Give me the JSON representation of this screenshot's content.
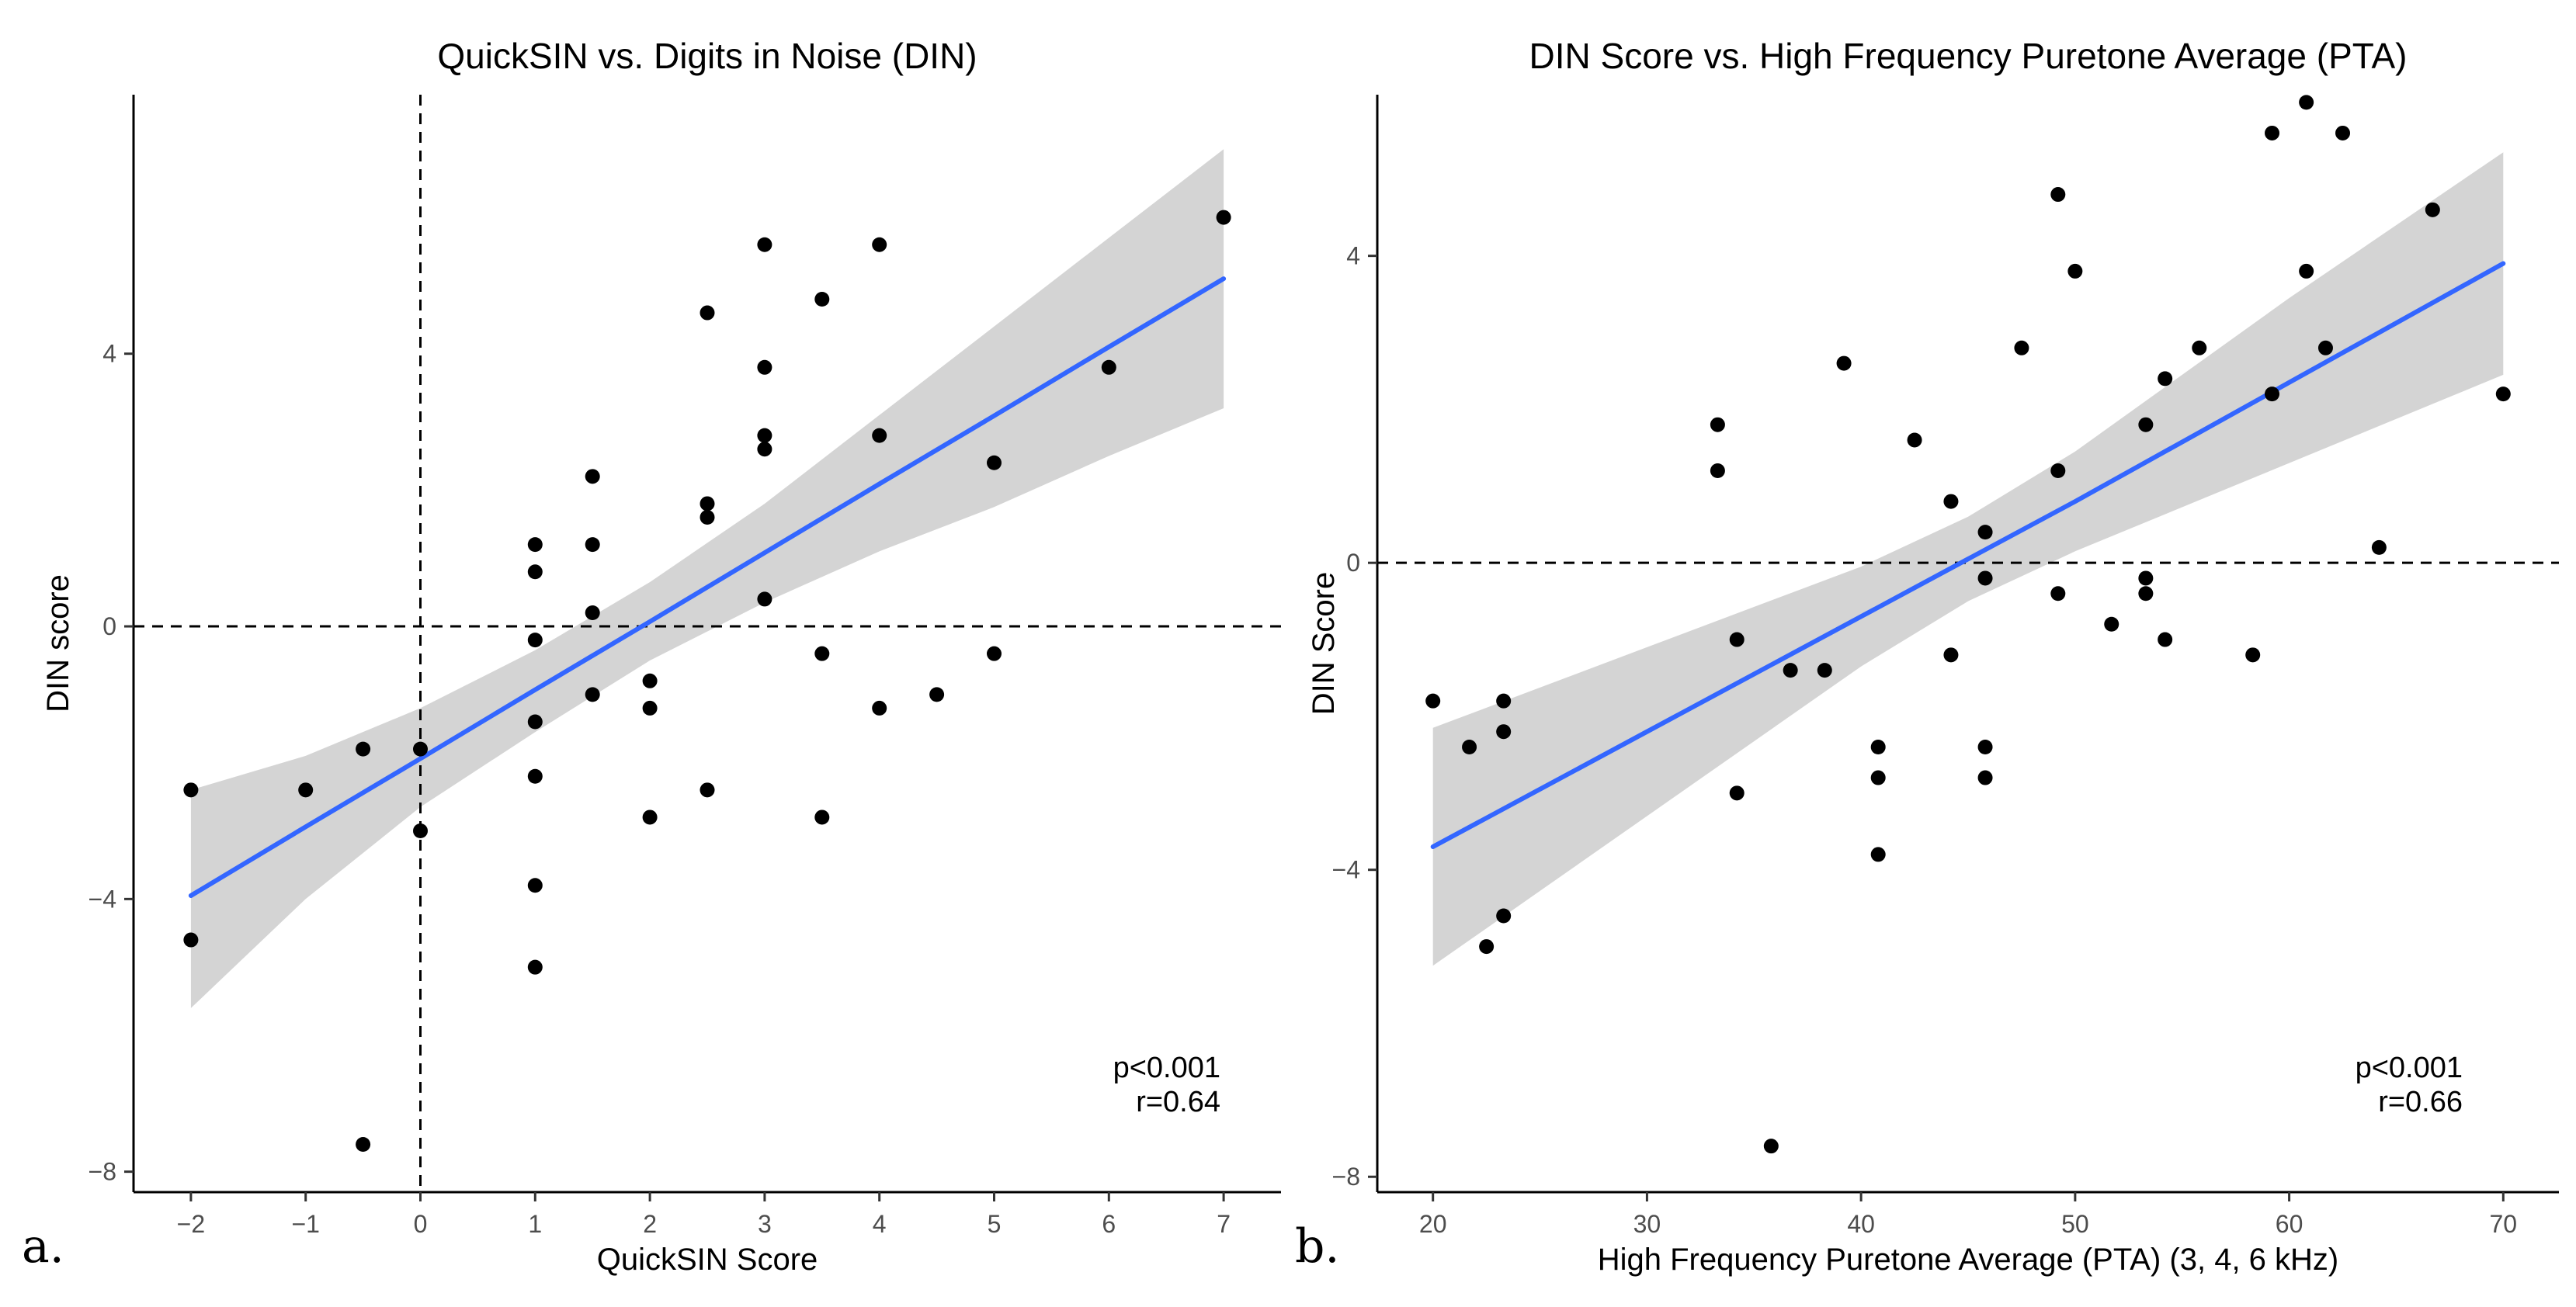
{
  "chart_data": [
    {
      "type": "scatter",
      "panel_label": "a.",
      "title": "QuickSIN vs. Digits in Noise (DIN)",
      "xlabel": "QuickSIN Score",
      "ylabel": "DIN score",
      "xlim": [
        -2.5,
        7.5
      ],
      "ylim": [
        -8.3,
        7.8
      ],
      "xticks": [
        -2,
        -1,
        0,
        1,
        2,
        3,
        4,
        5,
        6,
        7
      ],
      "yticks": [
        -8,
        -4,
        0,
        4
      ],
      "xtick_labels": [
        "−2",
        "−1",
        "0",
        "1",
        "2",
        "3",
        "4",
        "5",
        "6",
        "7"
      ],
      "ytick_labels": [
        "−8",
        "−4",
        "0",
        "4"
      ],
      "grid": false,
      "ref_lines": {
        "h": 0,
        "v": 0
      },
      "annotation": [
        "p<0.001",
        "r=0.64"
      ],
      "colors": {
        "points": "#000000",
        "fit": "#3366ff",
        "band": "#cccccc"
      },
      "points": [
        [
          -2,
          -2.4
        ],
        [
          -2,
          -4.6
        ],
        [
          -1,
          -2.4
        ],
        [
          -0.5,
          -1.8
        ],
        [
          -0.5,
          -7.6
        ],
        [
          0,
          -1.8
        ],
        [
          0,
          -3.0
        ],
        [
          1,
          1.2
        ],
        [
          1,
          0.8
        ],
        [
          1,
          -0.2
        ],
        [
          1,
          -1.4
        ],
        [
          1,
          -2.2
        ],
        [
          1,
          -3.8
        ],
        [
          1,
          -5.0
        ],
        [
          1.5,
          2.2
        ],
        [
          1.5,
          1.2
        ],
        [
          1.5,
          0.2
        ],
        [
          1.5,
          -1.0
        ],
        [
          2,
          -0.8
        ],
        [
          2,
          -1.2
        ],
        [
          2,
          -2.8
        ],
        [
          2.5,
          4.6
        ],
        [
          2.5,
          1.8
        ],
        [
          2.5,
          1.6
        ],
        [
          2.5,
          -2.4
        ],
        [
          3,
          5.6
        ],
        [
          3,
          3.8
        ],
        [
          3,
          2.8
        ],
        [
          3,
          2.6
        ],
        [
          3,
          0.4
        ],
        [
          3.5,
          4.8
        ],
        [
          3.5,
          -0.4
        ],
        [
          3.5,
          -2.8
        ],
        [
          4,
          5.6
        ],
        [
          4,
          2.8
        ],
        [
          4,
          -1.2
        ],
        [
          4.5,
          -1.0
        ],
        [
          5,
          2.4
        ],
        [
          5,
          -0.4
        ],
        [
          6,
          3.8
        ],
        [
          7,
          6.0
        ]
      ],
      "fit": {
        "x": [
          -2,
          -1,
          0,
          1,
          2,
          3,
          4,
          5,
          6,
          7
        ],
        "y": [
          -3.95,
          -2.94,
          -1.94,
          -0.93,
          0.07,
          1.08,
          2.09,
          3.09,
          4.1,
          5.1
        ],
        "lower": [
          -5.6,
          -4.0,
          -2.65,
          -1.55,
          -0.5,
          0.35,
          1.1,
          1.75,
          2.5,
          3.2
        ],
        "upper": [
          -2.4,
          -1.9,
          -1.2,
          -0.35,
          0.65,
          1.8,
          3.1,
          4.4,
          5.7,
          7.0
        ]
      }
    },
    {
      "type": "scatter",
      "panel_label": "b.",
      "title": "DIN Score vs. High Frequency Puretone Average (PTA)",
      "xlabel": "High Frequency Puretone Average (PTA) (3, 4, 6 kHz)",
      "ylabel": "DIN Score",
      "xlim": [
        17.4,
        72.6
      ],
      "ylim": [
        -8.2,
        6.1
      ],
      "xticks": [
        20,
        30,
        40,
        50,
        60,
        70
      ],
      "yticks": [
        -8,
        -4,
        0,
        4
      ],
      "xtick_labels": [
        "20",
        "30",
        "40",
        "50",
        "60",
        "70"
      ],
      "ytick_labels": [
        "−8",
        "−4",
        "0",
        "4"
      ],
      "grid": false,
      "ref_lines": {
        "h": 0
      },
      "annotation": [
        "p<0.001",
        "r=0.66"
      ],
      "colors": {
        "points": "#000000",
        "fit": "#3366ff",
        "band": "#cccccc"
      },
      "points": [
        [
          20,
          -1.8
        ],
        [
          21.7,
          -2.4
        ],
        [
          22.5,
          -5.0
        ],
        [
          23.3,
          -1.8
        ],
        [
          23.3,
          -2.2
        ],
        [
          23.3,
          -4.6
        ],
        [
          33.3,
          1.8
        ],
        [
          33.3,
          1.2
        ],
        [
          34.2,
          -1.0
        ],
        [
          34.2,
          -3.0
        ],
        [
          35.8,
          -7.6
        ],
        [
          36.7,
          -1.4
        ],
        [
          38.3,
          -1.4
        ],
        [
          39.2,
          2.6
        ],
        [
          40.8,
          -2.4
        ],
        [
          40.8,
          -2.8
        ],
        [
          40.8,
          -3.8
        ],
        [
          42.5,
          1.6
        ],
        [
          44.2,
          0.8
        ],
        [
          44.2,
          -1.2
        ],
        [
          45.8,
          0.4
        ],
        [
          45.8,
          -0.2
        ],
        [
          45.8,
          -2.4
        ],
        [
          45.8,
          -2.8
        ],
        [
          47.5,
          2.8
        ],
        [
          49.2,
          4.8
        ],
        [
          49.2,
          1.2
        ],
        [
          49.2,
          -0.4
        ],
        [
          50,
          3.8
        ],
        [
          51.7,
          -0.8
        ],
        [
          53.3,
          1.8
        ],
        [
          53.3,
          -0.2
        ],
        [
          53.3,
          -0.4
        ],
        [
          54.2,
          2.4
        ],
        [
          54.2,
          -1.0
        ],
        [
          55.8,
          2.8
        ],
        [
          58.3,
          -1.2
        ],
        [
          59.2,
          5.6
        ],
        [
          59.2,
          2.2
        ],
        [
          60.8,
          6.0
        ],
        [
          60.8,
          3.8
        ],
        [
          61.7,
          2.8
        ],
        [
          62.5,
          5.6
        ],
        [
          64.2,
          0.2
        ],
        [
          66.7,
          4.6
        ],
        [
          70,
          2.2
        ]
      ],
      "fit": {
        "x": [
          20,
          30,
          40,
          45,
          50,
          60,
          70
        ],
        "y": [
          -3.7,
          -2.2,
          -0.7,
          0.05,
          0.8,
          2.35,
          3.9
        ],
        "lower": [
          -5.25,
          -3.3,
          -1.35,
          -0.5,
          0.15,
          1.3,
          2.45
        ],
        "upper": [
          -2.15,
          -1.1,
          -0.05,
          0.6,
          1.45,
          3.45,
          5.35
        ]
      }
    }
  ]
}
